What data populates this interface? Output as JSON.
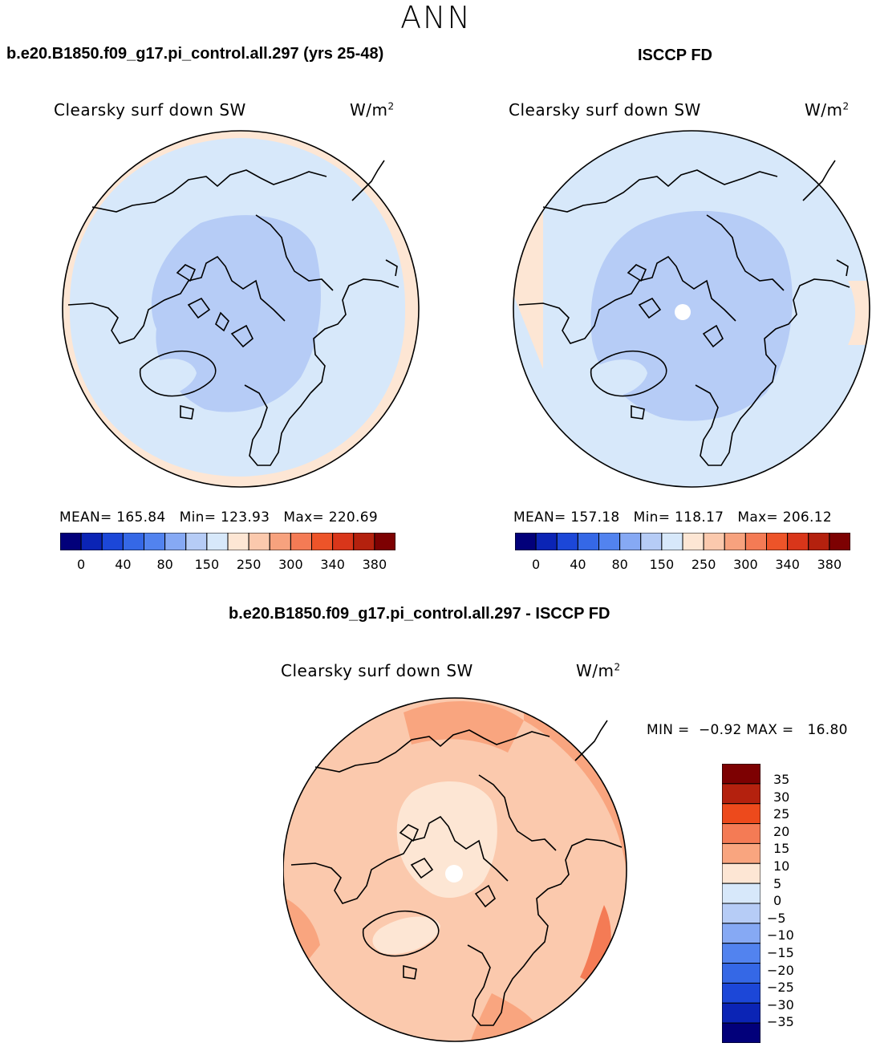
{
  "figure": {
    "season": "ANN",
    "variable": "Clearsky surf down SW",
    "units_base": "W/m",
    "units_exp": "2"
  },
  "panel_model": {
    "title": "b.e20.B1850.f09_g17.pi_control.all.297 (yrs 25-48)",
    "mean_label": "MEAN=",
    "mean": "165.84",
    "min_label": "Min=",
    "min": "123.93",
    "max_label": "Max=",
    "max": "220.69"
  },
  "panel_obs": {
    "title": "ISCCP FD",
    "mean_label": "MEAN=",
    "mean": "157.18",
    "min_label": "Min=",
    "min": "118.17",
    "max_label": "Max=",
    "max": "206.12"
  },
  "panel_diff": {
    "title": "b.e20.B1850.f09_g17.pi_control.all.297 - ISCCP FD",
    "min_label": "MIN =",
    "min": "−0.92",
    "max_label": "MAX =",
    "max": "16.80"
  },
  "colorbar_field": {
    "colors": [
      "#02007a",
      "#0b24b5",
      "#1c47d8",
      "#3568e6",
      "#5283ef",
      "#86a9f4",
      "#b6ccf6",
      "#d7e8fa",
      "#fde6d4",
      "#fbc9ad",
      "#f7a27e",
      "#f47b55",
      "#ed5429",
      "#d9361a",
      "#b4210e",
      "#7d0102"
    ],
    "tick_labels": [
      "0",
      "40",
      "80",
      "150",
      "250",
      "300",
      "340",
      "380"
    ]
  },
  "colorbar_diff": {
    "colors": [
      "#7d0102",
      "#b4210e",
      "#ed4a1c",
      "#f47b55",
      "#f9a57f",
      "#fde6d4",
      "#d7e8fa",
      "#b6ccf6",
      "#86a9f4",
      "#5283ef",
      "#3568e6",
      "#1c47d8",
      "#0b24b5",
      "#02007a"
    ],
    "tick_labels": [
      "35",
      "30",
      "25",
      "20",
      "15",
      "10",
      "5",
      "0",
      "−5",
      "−10",
      "−15",
      "−20",
      "−25",
      "−30",
      "−35"
    ]
  },
  "map_colors": {
    "outer_peach": "#fde6d4",
    "light_blue": "#d7e8fa",
    "mid_blue": "#b6ccf6",
    "diff_light": "#fbc9ad",
    "diff_mid": "#f9a57f",
    "diff_pale": "#fde6d4",
    "diff_dark": "#f47b55"
  }
}
